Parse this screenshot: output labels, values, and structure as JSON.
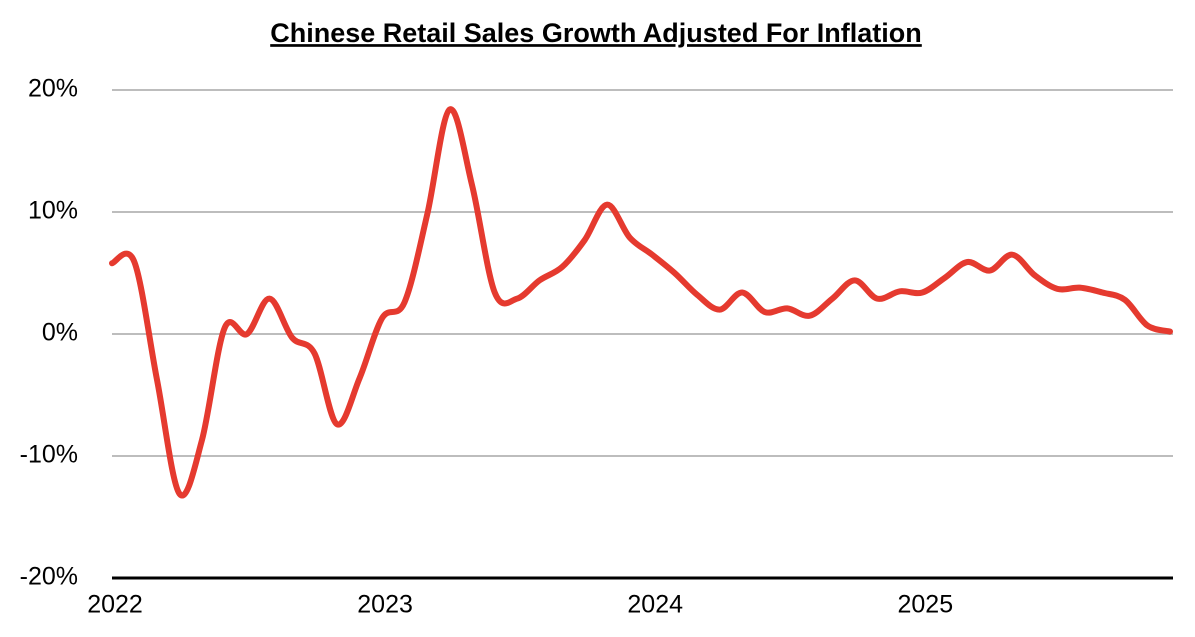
{
  "chart_data": {
    "type": "line",
    "title": "Chinese Retail Sales Growth Adjusted For Inflation",
    "x": [
      2022,
      2022.083,
      2022.167,
      2022.25,
      2022.333,
      2022.417,
      2022.5,
      2022.583,
      2022.667,
      2022.75,
      2022.833,
      2022.917,
      2023,
      2023.083,
      2023.167,
      2023.25,
      2023.333,
      2023.417,
      2023.5,
      2023.583,
      2023.667,
      2023.75,
      2023.833,
      2023.917,
      2024,
      2024.083,
      2024.167,
      2024.25,
      2024.333,
      2024.417,
      2024.5,
      2024.583,
      2024.667,
      2024.75,
      2024.833,
      2024.917,
      2025,
      2025.083,
      2025.167,
      2025.25,
      2025.333,
      2025.417,
      2025.5,
      2025.583,
      2025.667,
      2025.75,
      2025.833,
      2025.917
    ],
    "series": [
      {
        "color": "#e53a2f",
        "values": [
          5.8,
          5.9,
          -3.8,
          -13.1,
          -8.7,
          0.5,
          0,
          2.9,
          -0.3,
          -1.6,
          -7.4,
          -3.6,
          1.3,
          2.6,
          9.8,
          18.4,
          12.2,
          3.4,
          2.9,
          4.4,
          5.5,
          7.7,
          10.6,
          7.9,
          6.5,
          5.0,
          3.2,
          2.0,
          3.4,
          1.8,
          2.1,
          1.5,
          2.9,
          4.4,
          2.9,
          3.5,
          3.4,
          4.6,
          5.9,
          5.2,
          6.5,
          4.8,
          3.7,
          3.8,
          3.4,
          2.8,
          0.7,
          0.2
        ]
      }
    ],
    "xlim": [
      2022,
      2025.917
    ],
    "xticks": [
      2022,
      2023,
      2024,
      2025
    ],
    "ylim": [
      -20,
      20
    ],
    "yticks": [
      {
        "value": -20,
        "label": "-20%"
      },
      {
        "value": -10,
        "label": "-10%"
      },
      {
        "value": 0,
        "label": "0%"
      },
      {
        "value": 10,
        "label": "10%"
      },
      {
        "value": 20,
        "label": "20%"
      }
    ],
    "grid": true
  }
}
